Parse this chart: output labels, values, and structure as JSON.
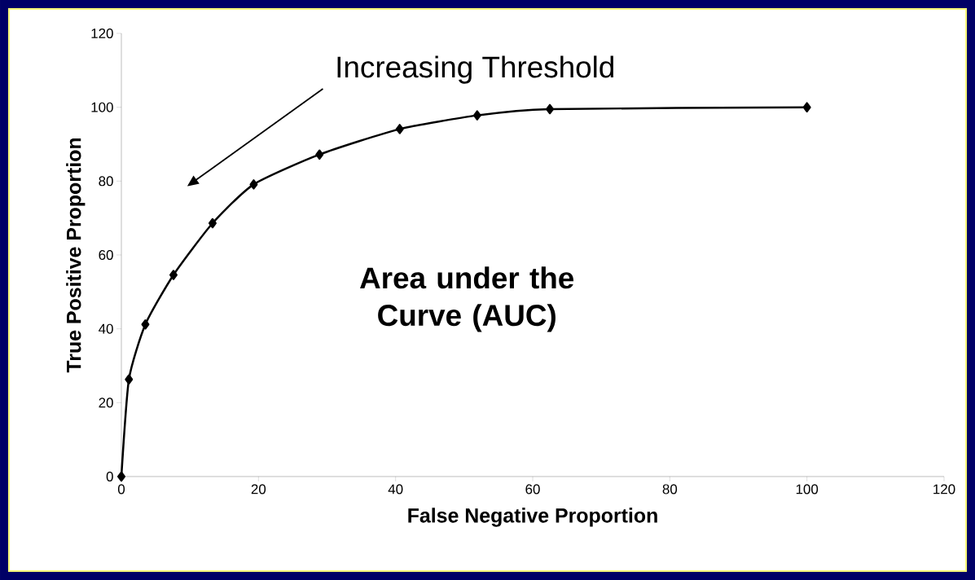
{
  "chart_data": {
    "type": "line",
    "xlabel": "False Negative Proportion",
    "ylabel": "True Positive Proportion",
    "annotations": [
      "Increasing Threshold",
      "Area under the Curve (AUC)"
    ],
    "x": [
      0,
      1.1,
      3.5,
      7.6,
      13.3,
      19.3,
      28.9,
      40.6,
      51.9,
      62.5,
      100
    ],
    "values": [
      0,
      26.3,
      41.2,
      54.6,
      68.6,
      79.1,
      87.2,
      94.1,
      97.8,
      99.5,
      100
    ],
    "color": "#000000",
    "marker": "diamond",
    "xlim": [
      0,
      120
    ],
    "ylim": [
      0,
      120
    ],
    "xticks": [
      0,
      20,
      40,
      60,
      80,
      100,
      120
    ],
    "yticks": [
      0,
      20,
      40,
      60,
      80,
      100,
      120
    ]
  }
}
